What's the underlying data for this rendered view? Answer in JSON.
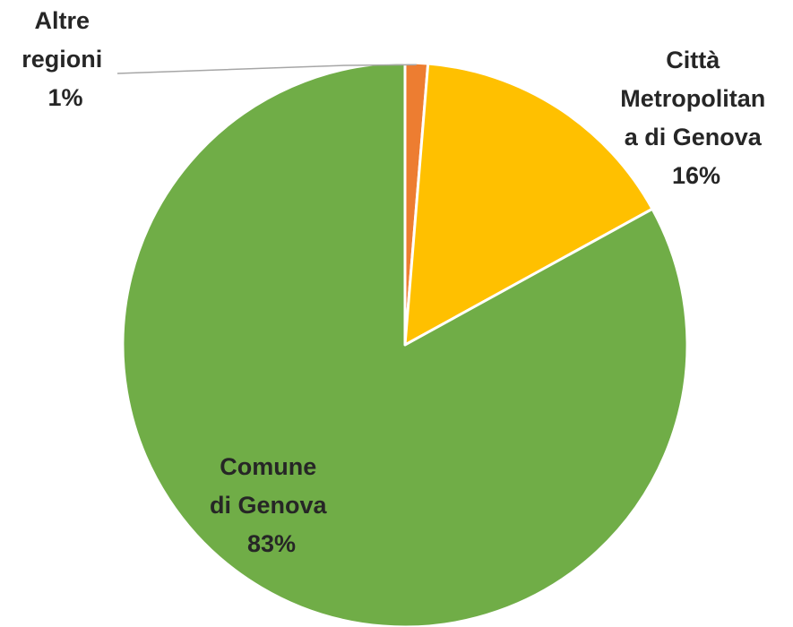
{
  "chart_data": {
    "type": "pie",
    "start_angle_deg": 90,
    "direction": "clockwise",
    "slices": [
      {
        "name": "Altre regioni",
        "label_lines": [
          "Altre",
          "regioni"
        ],
        "percent_label": "1%",
        "value": 1.3,
        "color": "#ed7d31"
      },
      {
        "name": "Città Metropolitana di Genova",
        "label_lines": [
          "Città",
          "Metropolitan",
          "a di Genova"
        ],
        "percent_label": "16%",
        "value": 15.7,
        "color": "#ffc000"
      },
      {
        "name": "Comune di Genova",
        "label_lines": [
          "Comune",
          "di Genova"
        ],
        "percent_label": "83%",
        "value": 83.0,
        "color": "#70ad47"
      }
    ],
    "legend": "none",
    "title": ""
  }
}
